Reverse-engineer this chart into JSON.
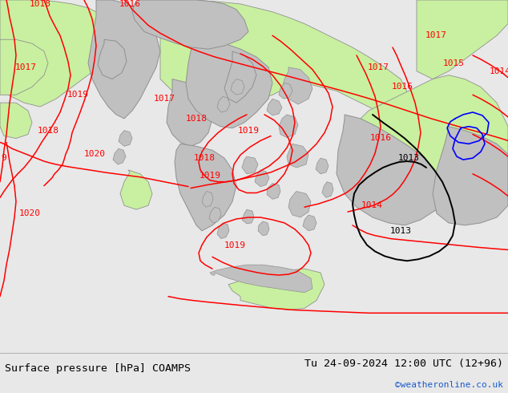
{
  "title_left": "Surface pressure [hPa] COAMPS",
  "title_right": "Tu 24-09-2024 12:00 UTC (12+96)",
  "watermark": "©weatheronline.co.uk",
  "bg_map_color": "#e8e8e8",
  "green_land_color": "#c8f0a0",
  "gray_land_color": "#c0c0c0",
  "sea_color": "#e0e0e0",
  "contour_red": "#ff0000",
  "contour_black": "#000000",
  "contour_blue": "#0000ff",
  "coast_color": "#909090",
  "bottom_bar_color": "#e8e8e8",
  "fig_width": 6.34,
  "fig_height": 4.9
}
